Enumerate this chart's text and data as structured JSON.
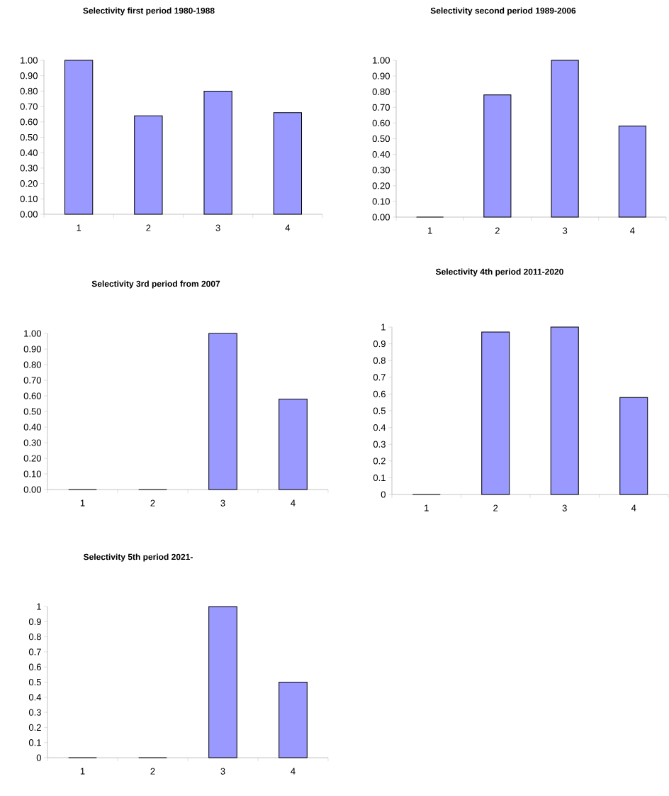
{
  "chart_data": [
    {
      "type": "bar",
      "title": "Selectivity first period 1980-1988",
      "categories": [
        "1",
        "2",
        "3",
        "4"
      ],
      "values": [
        1.0,
        0.64,
        0.8,
        0.66
      ],
      "color": "#9999ff",
      "ylim": [
        0,
        1
      ],
      "yticks": [
        {
          "value": 0,
          "label": "0.00"
        },
        {
          "value": 0.1,
          "label": "0.10"
        },
        {
          "value": 0.2,
          "label": "0.20"
        },
        {
          "value": 0.3,
          "label": "0.30"
        },
        {
          "value": 0.4,
          "label": "0.40"
        },
        {
          "value": 0.5,
          "label": "0.50"
        },
        {
          "value": 0.6,
          "label": "0.60"
        },
        {
          "value": 0.7,
          "label": "0.70"
        },
        {
          "value": 0.8,
          "label": "0.80"
        },
        {
          "value": 0.9,
          "label": "0.90"
        },
        {
          "value": 1,
          "label": "1.00"
        }
      ]
    },
    {
      "type": "bar",
      "title": "Selectivity second period 1989-2006",
      "categories": [
        "1",
        "2",
        "3",
        "4"
      ],
      "values": [
        0,
        0.78,
        1.0,
        0.58
      ],
      "color": "#9999ff",
      "ylim": [
        0,
        1
      ],
      "yticks": [
        {
          "value": 0,
          "label": "0.00"
        },
        {
          "value": 0.1,
          "label": "0.10"
        },
        {
          "value": 0.2,
          "label": "0.20"
        },
        {
          "value": 0.3,
          "label": "0.30"
        },
        {
          "value": 0.4,
          "label": "0.40"
        },
        {
          "value": 0.5,
          "label": "0.50"
        },
        {
          "value": 0.6,
          "label": "0.60"
        },
        {
          "value": 0.7,
          "label": "0.70"
        },
        {
          "value": 0.8,
          "label": "0.80"
        },
        {
          "value": 0.9,
          "label": "0.90"
        },
        {
          "value": 1,
          "label": "1.00"
        }
      ]
    },
    {
      "type": "bar",
      "title": "Selectivity 3rd period from 2007",
      "categories": [
        "1",
        "2",
        "3",
        "4"
      ],
      "values": [
        0,
        0,
        1.0,
        0.58
      ],
      "color": "#9999ff",
      "ylim": [
        0,
        1
      ],
      "yticks": [
        {
          "value": 0,
          "label": "0.00"
        },
        {
          "value": 0.1,
          "label": "0.10"
        },
        {
          "value": 0.2,
          "label": "0.20"
        },
        {
          "value": 0.3,
          "label": "0.30"
        },
        {
          "value": 0.4,
          "label": "0.40"
        },
        {
          "value": 0.5,
          "label": "0.50"
        },
        {
          "value": 0.6,
          "label": "0.60"
        },
        {
          "value": 0.7,
          "label": "0.70"
        },
        {
          "value": 0.8,
          "label": "0.80"
        },
        {
          "value": 0.9,
          "label": "0.90"
        },
        {
          "value": 1,
          "label": "1.00"
        }
      ]
    },
    {
      "type": "bar",
      "title": "Selectivity 4th period 2011-2020",
      "categories": [
        "1",
        "2",
        "3",
        "4"
      ],
      "values": [
        0,
        0.97,
        1.0,
        0.58
      ],
      "color": "#9999ff",
      "ylim": [
        0,
        1
      ],
      "yticks": [
        0,
        0.1,
        0.2,
        0.3,
        0.4,
        0.5,
        0.6,
        0.7,
        0.8,
        0.9,
        1
      ]
    },
    {
      "type": "bar",
      "title": "Selectivity 5th period 2021-",
      "categories": [
        "1",
        "2",
        "3",
        "4"
      ],
      "values": [
        0,
        0,
        1.0,
        0.5
      ],
      "color": "#9999ff",
      "ylim": [
        0,
        1
      ],
      "yticks": [
        0,
        0.1,
        0.2,
        0.3,
        0.4,
        0.5,
        0.6,
        0.7,
        0.8,
        0.9,
        1
      ]
    }
  ]
}
